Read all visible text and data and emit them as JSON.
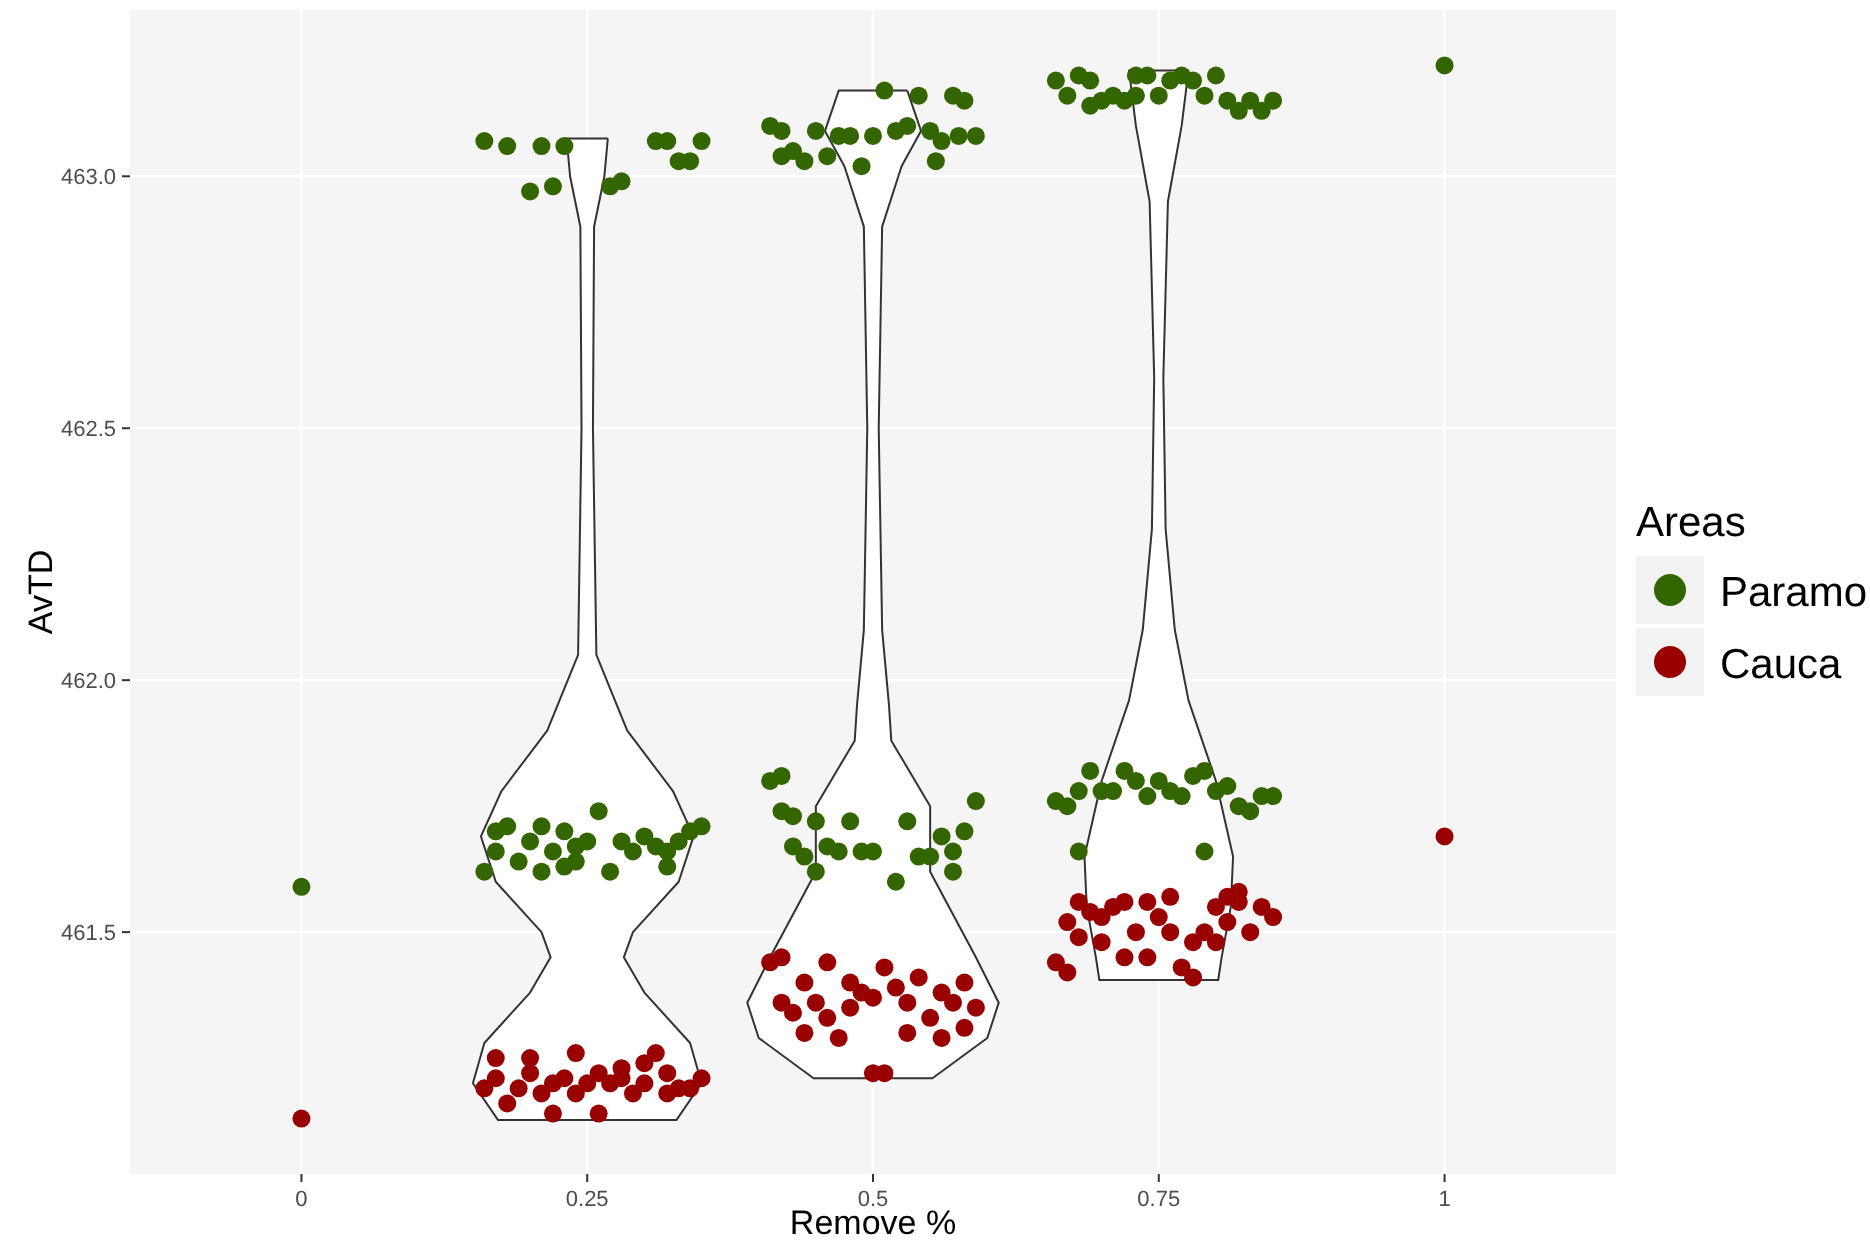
{
  "chart_data": {
    "type": "scatter",
    "xlabel": "Remove %",
    "ylabel": "AvTD",
    "legend_title": "Areas",
    "legend": "right",
    "grid": true,
    "marker": "circle",
    "xlim": [
      -0.15,
      1.15
    ],
    "xticks": [
      0,
      0.25,
      0.5,
      0.75,
      1
    ],
    "ylim": [
      461.02,
      463.33
    ],
    "yticks": [
      461.5,
      {
        "value": 462,
        "label": "462.0"
      },
      462.5,
      {
        "value": 463,
        "label": "463.0"
      }
    ],
    "series": [
      {
        "type": "area",
        "marker": "none",
        "color": "#333333",
        "x": [
          0.268,
          0.265,
          0.256,
          0.255,
          0.258,
          0.285,
          0.325,
          0.343,
          0.33,
          0.29,
          0.282,
          0.3,
          0.34,
          0.35,
          0.328,
          0.172,
          0.15,
          0.16,
          0.2,
          0.218,
          0.21,
          0.17,
          0.157,
          0.175,
          0.215,
          0.242,
          0.245,
          0.244,
          0.235,
          0.232,
          0.268
        ],
        "values": [
          463.075,
          463.0,
          462.9,
          462.5,
          462.05,
          461.9,
          461.78,
          461.69,
          461.6,
          461.5,
          461.45,
          461.38,
          461.28,
          461.2,
          461.127,
          461.127,
          461.2,
          461.28,
          461.38,
          461.45,
          461.5,
          461.6,
          461.69,
          461.78,
          461.9,
          462.05,
          462.5,
          462.9,
          463.0,
          463.075,
          463.075
        ]
      },
      {
        "type": "area",
        "marker": "none",
        "color": "#333333",
        "x": [
          0.53,
          0.542,
          0.525,
          0.508,
          0.505,
          0.508,
          0.514,
          0.516,
          0.55,
          0.55,
          0.59,
          0.61,
          0.6,
          0.552,
          0.448,
          0.4,
          0.39,
          0.41,
          0.45,
          0.45,
          0.484,
          0.486,
          0.492,
          0.495,
          0.492,
          0.475,
          0.458,
          0.47,
          0.53
        ],
        "values": [
          463.17,
          463.09,
          463.02,
          462.9,
          462.5,
          462.1,
          461.95,
          461.88,
          461.75,
          461.62,
          461.45,
          461.36,
          461.29,
          461.21,
          461.21,
          461.29,
          461.36,
          461.45,
          461.62,
          461.75,
          461.88,
          461.95,
          462.1,
          462.5,
          462.9,
          463.02,
          463.09,
          463.17,
          463.17
        ]
      },
      {
        "type": "area",
        "marker": "none",
        "color": "#333333",
        "x": [
          0.776,
          0.77,
          0.758,
          0.754,
          0.756,
          0.764,
          0.776,
          0.8,
          0.815,
          0.813,
          0.805,
          0.802,
          0.698,
          0.695,
          0.687,
          0.685,
          0.7,
          0.724,
          0.736,
          0.744,
          0.746,
          0.742,
          0.73,
          0.724,
          0.776
        ],
        "values": [
          463.21,
          463.1,
          462.95,
          462.6,
          462.3,
          462.1,
          461.96,
          461.8,
          461.65,
          461.55,
          461.45,
          461.405,
          461.405,
          461.45,
          461.55,
          461.65,
          461.8,
          461.96,
          462.1,
          462.3,
          462.6,
          462.95,
          463.1,
          463.21,
          463.21
        ]
      },
      {
        "name": "Paramo",
        "color": "#336600",
        "x": [
          0,
          1,
          0.16,
          0.18,
          0.21,
          0.2,
          0.22,
          0.23,
          0.27,
          0.28,
          0.31,
          0.32,
          0.33,
          0.34,
          0.35,
          0.16,
          0.17,
          0.17,
          0.18,
          0.19,
          0.2,
          0.21,
          0.21,
          0.22,
          0.23,
          0.23,
          0.24,
          0.24,
          0.25,
          0.26,
          0.27,
          0.28,
          0.29,
          0.3,
          0.31,
          0.32,
          0.32,
          0.33,
          0.34,
          0.35,
          0.41,
          0.42,
          0.43,
          0.44,
          0.45,
          0.46,
          0.47,
          0.48,
          0.49,
          0.5,
          0.51,
          0.52,
          0.53,
          0.54,
          0.55,
          0.555,
          0.56,
          0.57,
          0.575,
          0.58,
          0.59,
          0.42,
          0.41,
          0.42,
          0.42,
          0.43,
          0.43,
          0.44,
          0.45,
          0.46,
          0.47,
          0.48,
          0.49,
          0.5,
          0.52,
          0.53,
          0.54,
          0.55,
          0.56,
          0.57,
          0.58,
          0.59,
          0.45,
          0.57,
          0.66,
          0.67,
          0.68,
          0.69,
          0.7,
          0.71,
          0.72,
          0.73,
          0.74,
          0.75,
          0.76,
          0.77,
          0.78,
          0.79,
          0.8,
          0.81,
          0.82,
          0.83,
          0.84,
          0.85,
          0.69,
          0.73,
          0.66,
          0.67,
          0.68,
          0.69,
          0.7,
          0.71,
          0.72,
          0.73,
          0.74,
          0.75,
          0.76,
          0.77,
          0.78,
          0.79,
          0.8,
          0.81,
          0.82,
          0.83,
          0.84,
          0.85,
          0.68,
          0.79
        ],
        "values": [
          461.59,
          463.22,
          463.07,
          463.06,
          463.06,
          462.97,
          462.98,
          463.06,
          462.98,
          462.99,
          463.07,
          463.07,
          463.03,
          463.03,
          463.07,
          461.62,
          461.66,
          461.7,
          461.71,
          461.64,
          461.68,
          461.71,
          461.62,
          461.66,
          461.7,
          461.63,
          461.67,
          461.64,
          461.68,
          461.74,
          461.62,
          461.68,
          461.66,
          461.69,
          461.67,
          461.66,
          461.63,
          461.68,
          461.7,
          461.71,
          463.1,
          463.04,
          463.05,
          463.03,
          463.09,
          463.04,
          463.08,
          463.08,
          463.02,
          463.08,
          463.17,
          463.09,
          463.1,
          463.16,
          463.09,
          463.03,
          463.07,
          463.16,
          463.08,
          463.15,
          463.08,
          463.09,
          461.8,
          461.81,
          461.74,
          461.73,
          461.67,
          461.65,
          461.72,
          461.67,
          461.66,
          461.72,
          461.66,
          461.66,
          461.6,
          461.72,
          461.65,
          461.65,
          461.69,
          461.66,
          461.7,
          461.76,
          461.62,
          461.62,
          463.19,
          463.16,
          463.2,
          463.19,
          463.15,
          463.16,
          463.15,
          463.16,
          463.2,
          463.16,
          463.19,
          463.2,
          463.19,
          463.16,
          463.2,
          463.15,
          463.13,
          463.15,
          463.13,
          463.15,
          463.14,
          463.2,
          461.76,
          461.75,
          461.78,
          461.82,
          461.78,
          461.78,
          461.82,
          461.8,
          461.77,
          461.8,
          461.78,
          461.77,
          461.81,
          461.82,
          461.78,
          461.79,
          461.75,
          461.74,
          461.77,
          461.77,
          461.66,
          461.66
        ]
      },
      {
        "name": "Cauca",
        "color": "#990000",
        "x": [
          0,
          1,
          0.16,
          0.17,
          0.17,
          0.18,
          0.19,
          0.2,
          0.2,
          0.21,
          0.22,
          0.22,
          0.23,
          0.24,
          0.24,
          0.25,
          0.26,
          0.26,
          0.27,
          0.28,
          0.28,
          0.29,
          0.3,
          0.3,
          0.31,
          0.32,
          0.32,
          0.33,
          0.34,
          0.35,
          0.41,
          0.42,
          0.42,
          0.43,
          0.44,
          0.44,
          0.45,
          0.46,
          0.46,
          0.47,
          0.48,
          0.48,
          0.49,
          0.5,
          0.51,
          0.52,
          0.53,
          0.53,
          0.54,
          0.55,
          0.56,
          0.56,
          0.57,
          0.58,
          0.58,
          0.59,
          0.5,
          0.51,
          0.66,
          0.67,
          0.67,
          0.68,
          0.68,
          0.69,
          0.7,
          0.7,
          0.71,
          0.72,
          0.72,
          0.73,
          0.74,
          0.74,
          0.75,
          0.76,
          0.76,
          0.77,
          0.78,
          0.79,
          0.8,
          0.8,
          0.81,
          0.81,
          0.82,
          0.82,
          0.83,
          0.84,
          0.85,
          0.78
        ],
        "values": [
          461.13,
          461.69,
          461.19,
          461.25,
          461.21,
          461.16,
          461.19,
          461.25,
          461.22,
          461.18,
          461.2,
          461.14,
          461.21,
          461.18,
          461.26,
          461.2,
          461.22,
          461.14,
          461.2,
          461.21,
          461.23,
          461.18,
          461.2,
          461.24,
          461.26,
          461.22,
          461.18,
          461.19,
          461.19,
          461.21,
          461.44,
          461.45,
          461.36,
          461.34,
          461.3,
          461.4,
          461.36,
          461.33,
          461.44,
          461.29,
          461.4,
          461.35,
          461.38,
          461.37,
          461.43,
          461.39,
          461.36,
          461.3,
          461.41,
          461.33,
          461.38,
          461.29,
          461.36,
          461.31,
          461.4,
          461.35,
          461.22,
          461.22,
          461.44,
          461.52,
          461.42,
          461.56,
          461.49,
          461.54,
          461.53,
          461.48,
          461.55,
          461.56,
          461.45,
          461.5,
          461.45,
          461.56,
          461.53,
          461.5,
          461.57,
          461.43,
          461.48,
          461.5,
          461.55,
          461.48,
          461.57,
          461.52,
          461.58,
          461.56,
          461.5,
          461.55,
          461.53,
          461.41
        ]
      }
    ]
  }
}
